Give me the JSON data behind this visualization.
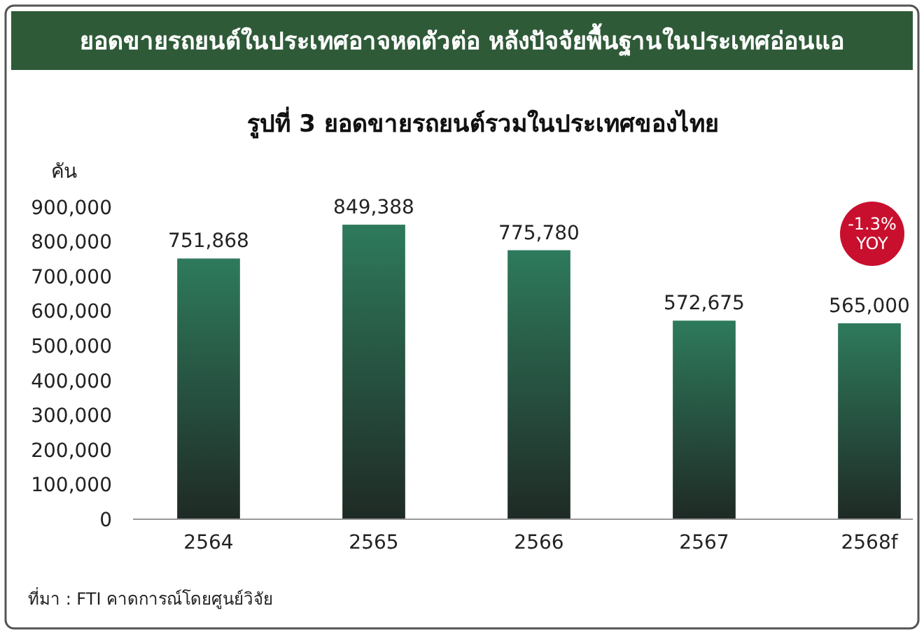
{
  "chart_data": {
    "type": "bar",
    "title": "ยอดขายรถยนต์ในประเทศอาจหดตัวต่อ หลังปัจจัยพื้นฐานในประเทศอ่อนแอ",
    "subtitle": "รูปที่ 3 ยอดขายรถยนต์รวมในประเทศของไทย",
    "ylabel": "คัน",
    "categories": [
      "2564",
      "2565",
      "2566",
      "2567",
      "2568f"
    ],
    "values": [
      751868,
      849388,
      775780,
      572675,
      565000
    ],
    "value_labels": [
      "751,868",
      "849,388",
      "775,780",
      "572,675",
      "565,000"
    ],
    "color": "#2e7a5c",
    "ylim": [
      0,
      900000
    ],
    "yticks": [
      {
        "value": 0,
        "label": "0"
      },
      {
        "value": 100000,
        "label": "100,000"
      },
      {
        "value": 200000,
        "label": "200,000"
      },
      {
        "value": 300000,
        "label": "300,000"
      },
      {
        "value": 400000,
        "label": "400,000"
      },
      {
        "value": 500000,
        "label": "500,000"
      },
      {
        "value": 600000,
        "label": "600,000"
      },
      {
        "value": 700000,
        "label": "700,000"
      },
      {
        "value": 800000,
        "label": "800,000"
      },
      {
        "value": 900000,
        "label": "900,000"
      }
    ],
    "grid": false,
    "annotations": [
      "-1.3% YOY",
      "ที่มา : FTI คาดการณ์โดยศูนย์วิจัย"
    ]
  }
}
